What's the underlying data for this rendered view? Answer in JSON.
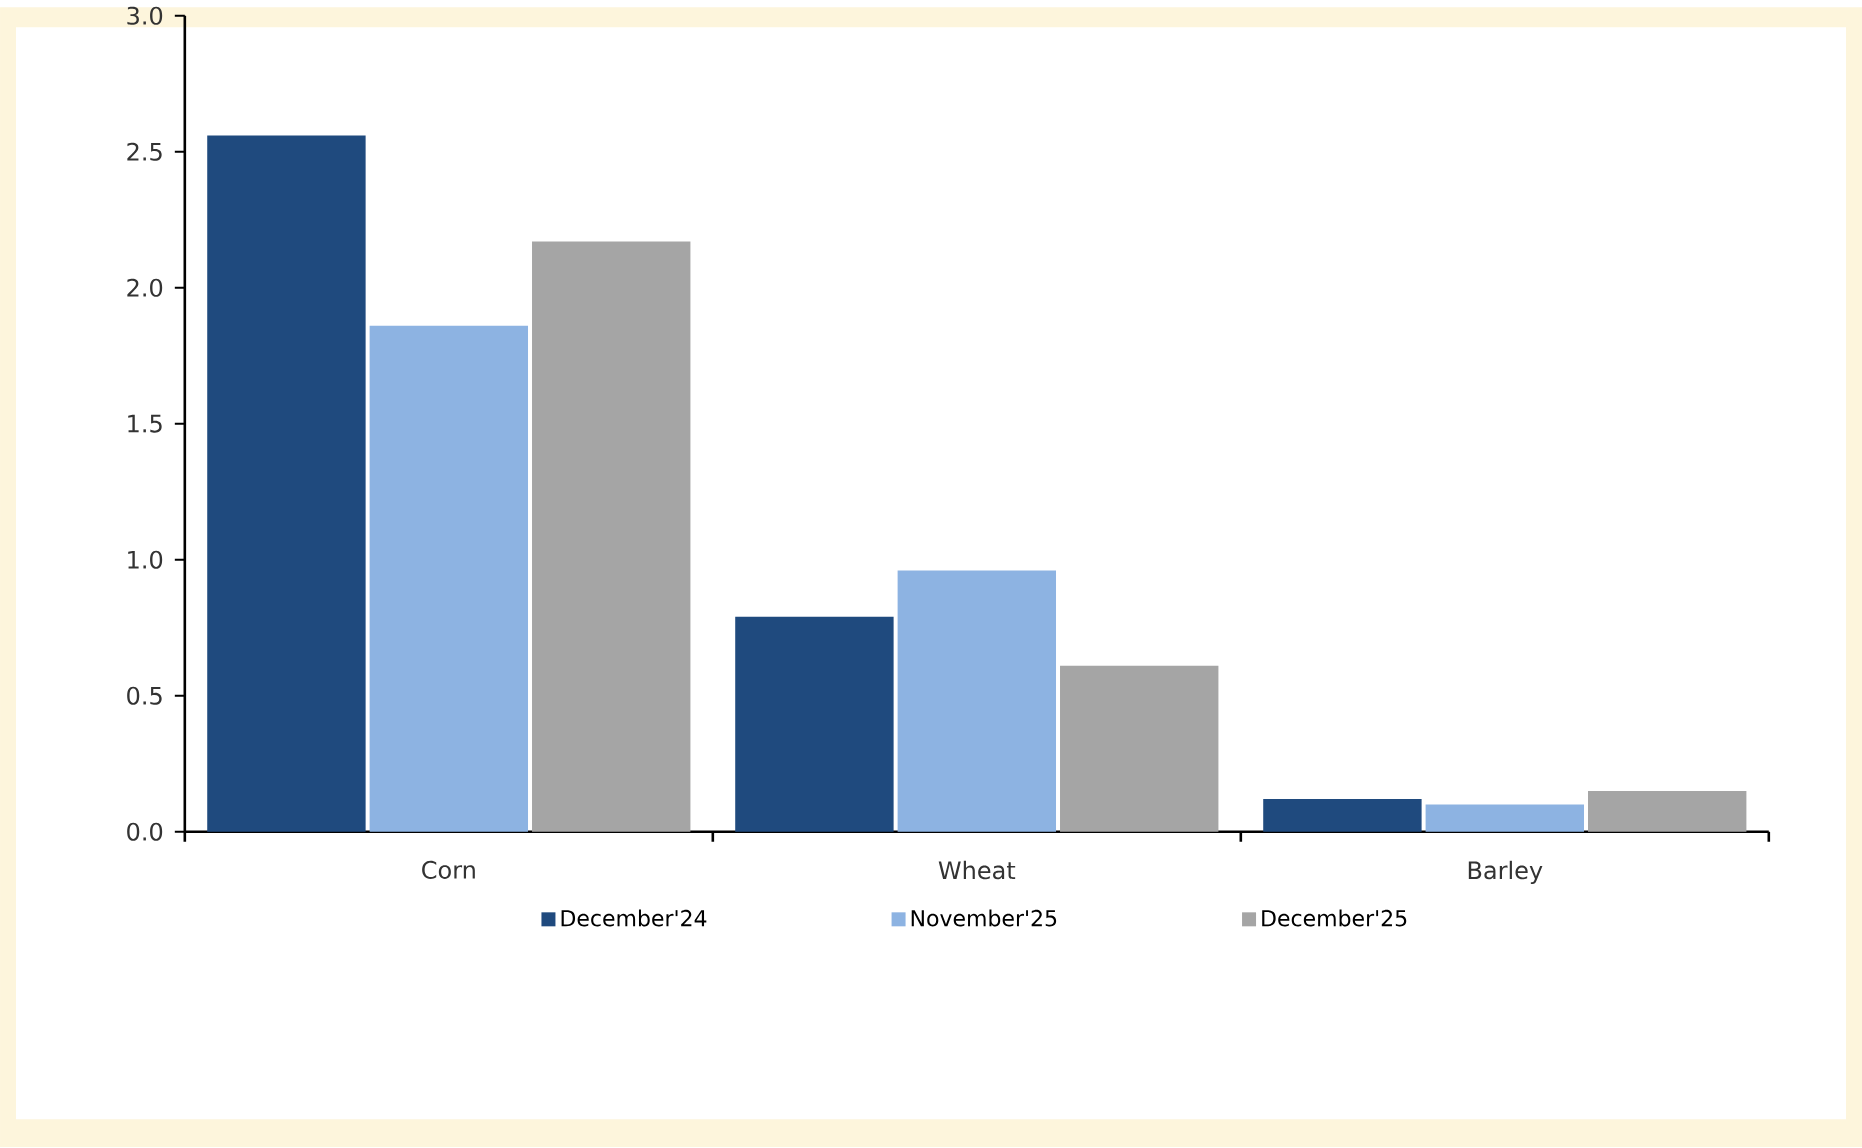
{
  "chart_data": {
    "type": "bar",
    "categories": [
      "Corn",
      "Wheat",
      "Barley"
    ],
    "series": [
      {
        "name": "December'24",
        "color": "#1f4a7e",
        "values": [
          2.56,
          0.79,
          0.12
        ]
      },
      {
        "name": "November'25",
        "color": "#8db3e2",
        "values": [
          1.86,
          0.96,
          0.1
        ]
      },
      {
        "name": "December'25",
        "color": "#a5a5a5",
        "values": [
          2.17,
          0.61,
          0.15
        ]
      }
    ],
    "ylim": [
      0,
      3
    ],
    "yticks": [
      {
        "value": 0,
        "label": "0.0"
      },
      {
        "value": 0.5,
        "label": "0.5"
      },
      {
        "value": 1,
        "label": "1.0"
      },
      {
        "value": 1.5,
        "label": "1.5"
      },
      {
        "value": 2,
        "label": "2.0"
      },
      {
        "value": 2.5,
        "label": "2.5"
      },
      {
        "value": 3,
        "label": "3.0"
      }
    ],
    "legend": "bottom"
  }
}
